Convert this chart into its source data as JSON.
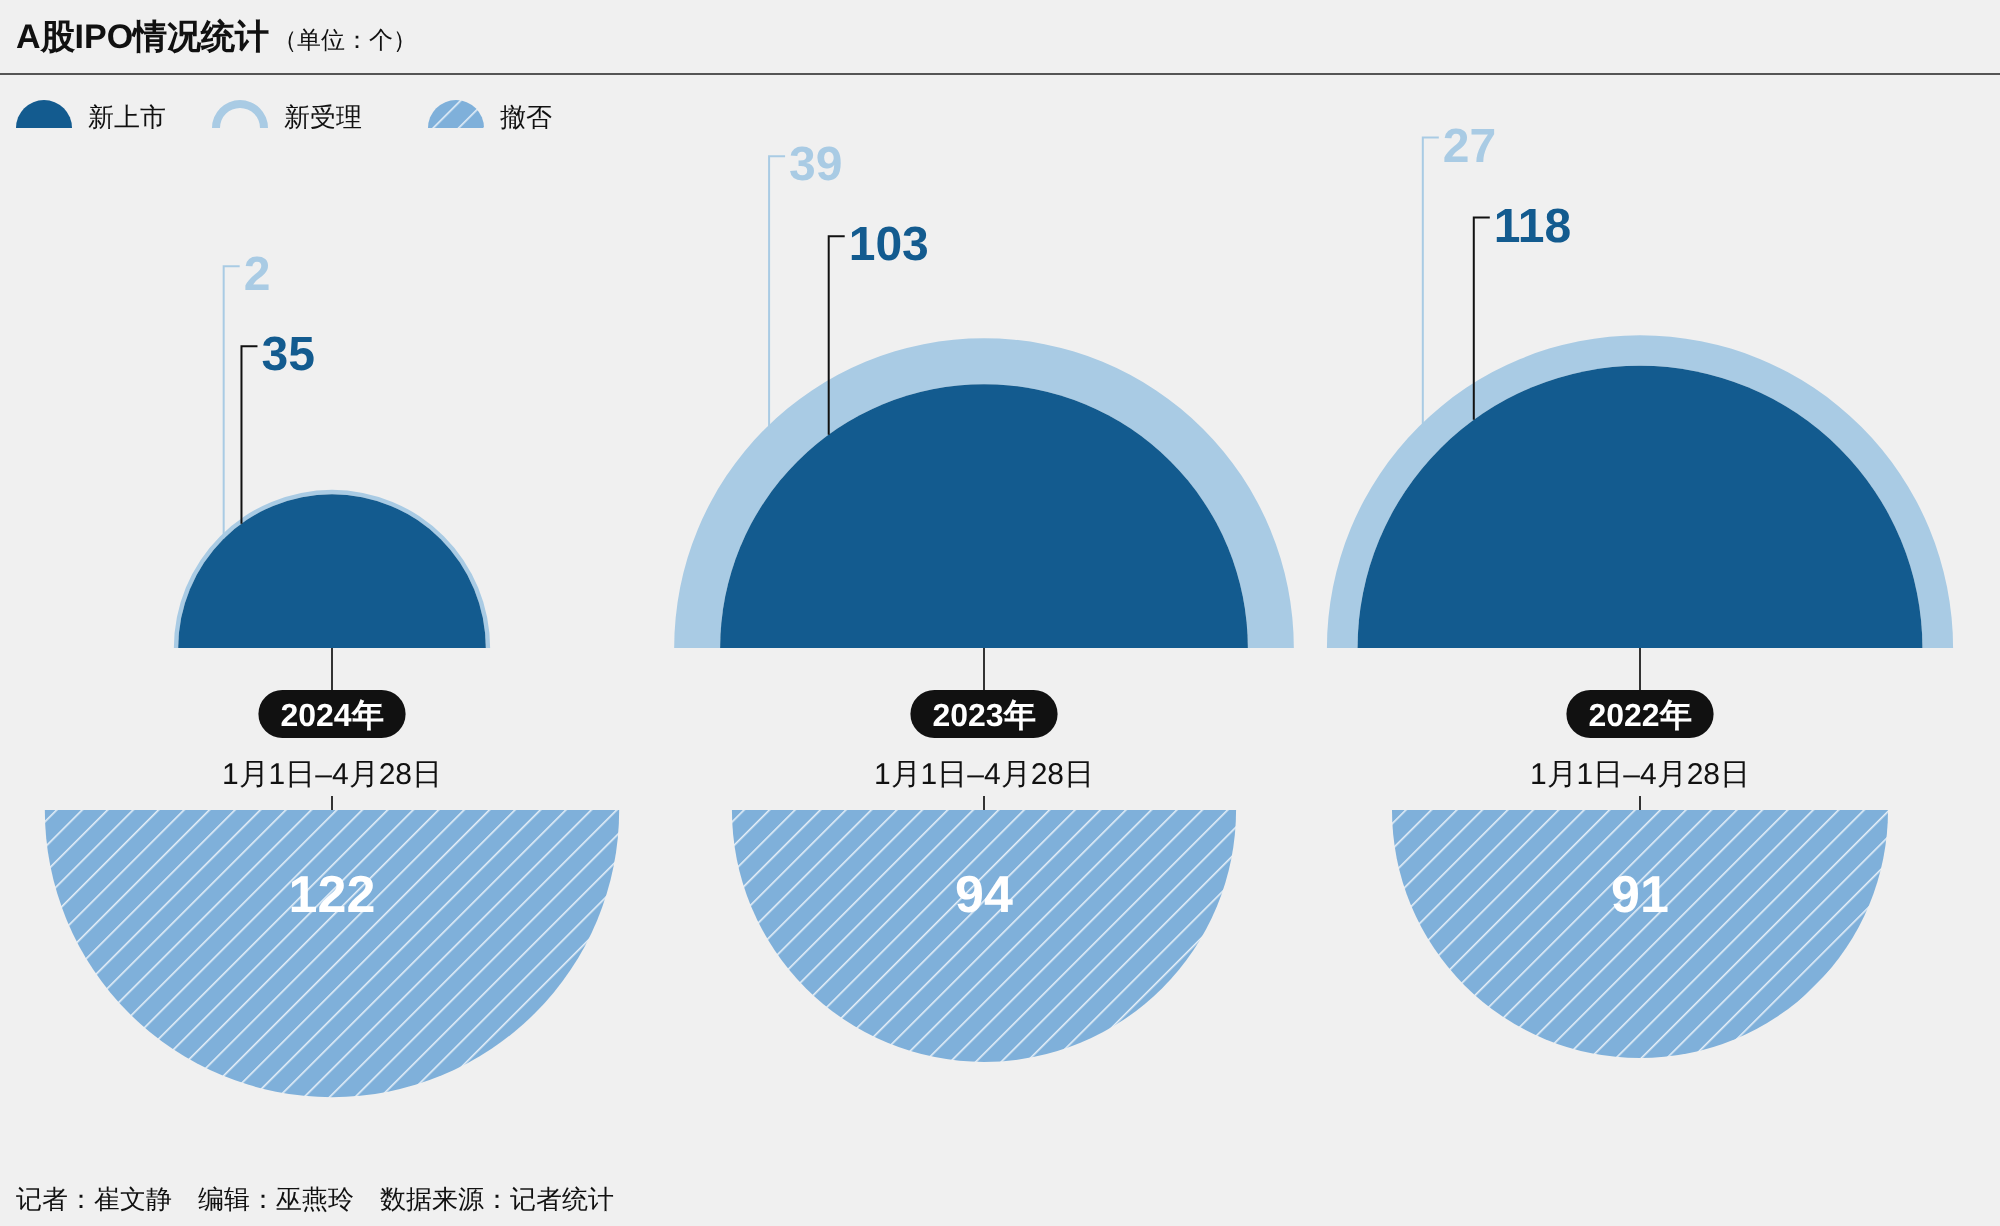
{
  "chart_data": {
    "type": "other",
    "title": "A股IPO情况统计",
    "subtitle": "（单位：个）",
    "categories": [
      "2024年",
      "2023年",
      "2022年"
    ],
    "series": [
      {
        "name": "新上市",
        "color": "#135b8f",
        "values": [
          35,
          103,
          118
        ]
      },
      {
        "name": "新受理",
        "color": "#a9cbe4",
        "values": [
          2,
          39,
          27
        ]
      },
      {
        "name": "撤否",
        "color": "#7fb0da",
        "values": [
          122,
          94,
          91
        ]
      }
    ],
    "data_labels": true,
    "legend": "top left",
    "annotations": [
      "1月1日–4月28日",
      "1月1日–4月28日",
      "1月1日–4月28日",
      "记者：崔文静　编辑：巫燕玲　数据来源：记者统计"
    ]
  }
}
